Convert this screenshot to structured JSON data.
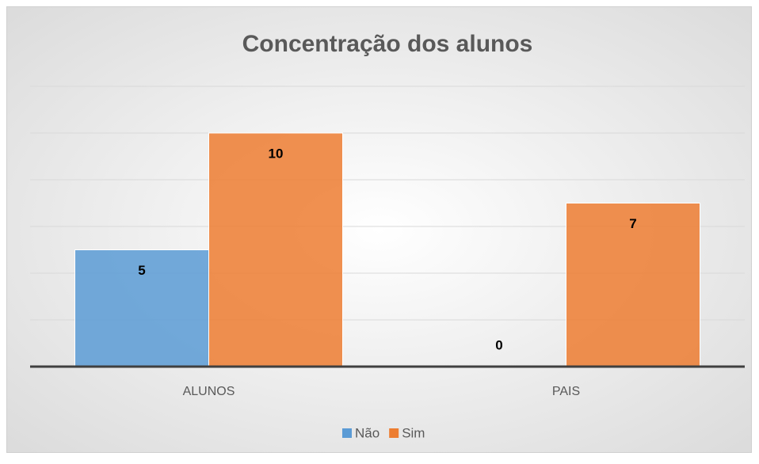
{
  "chart_data": {
    "type": "bar",
    "title": "Concentração dos alunos",
    "categories": [
      "ALUNOS",
      "PAIS"
    ],
    "series": [
      {
        "name": "Não",
        "color": "#5b9bd5",
        "values": [
          5,
          0
        ]
      },
      {
        "name": "Sim",
        "color": "#ed7d31",
        "values": [
          10,
          7
        ]
      }
    ],
    "ylim": [
      0,
      12
    ],
    "yticks": [
      0,
      2,
      4,
      6,
      8,
      10,
      12
    ],
    "grid": true,
    "legend": "bottom"
  }
}
